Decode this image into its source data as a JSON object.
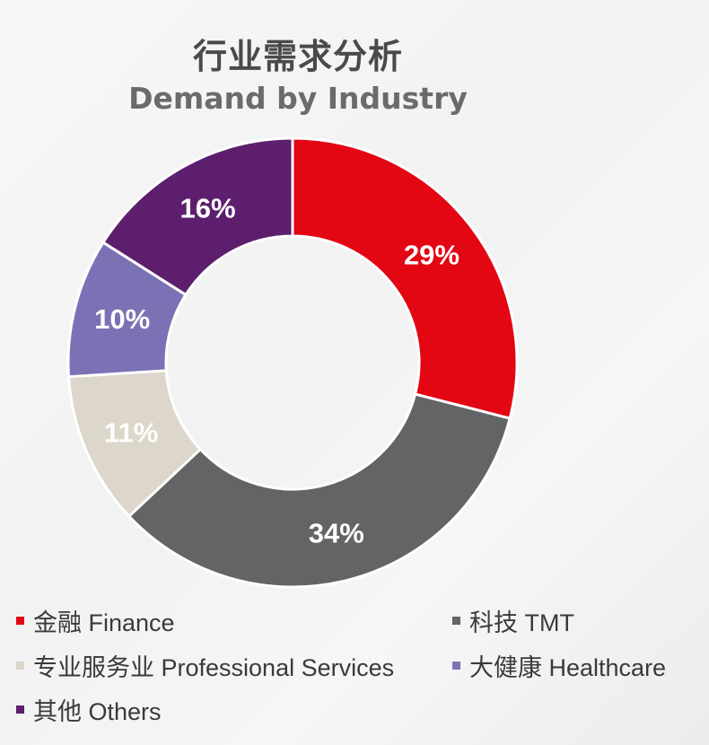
{
  "chart_data": {
    "type": "pie",
    "variant": "donut",
    "title": "行业需求分析",
    "subtitle": "Demand by Industry",
    "slices": [
      {
        "label": "金融 Finance",
        "value": 29,
        "display": "29%",
        "color": "#e30613"
      },
      {
        "label": "科技 TMT",
        "value": 34,
        "display": "34%",
        "color": "#636466"
      },
      {
        "label": "专业服务业 Professional Services",
        "value": 11,
        "display": "11%",
        "color": "#dcd6cb"
      },
      {
        "label": "大健康 Healthcare",
        "value": 10,
        "display": "10%",
        "color": "#7b72b5"
      },
      {
        "label": "其他 Others",
        "value": 16,
        "display": "16%",
        "color": "#5d1f6d"
      }
    ],
    "legend_position": "bottom"
  }
}
